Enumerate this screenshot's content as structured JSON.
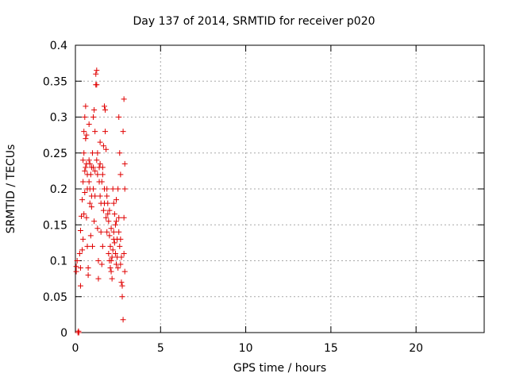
{
  "chart_data": {
    "type": "scatter",
    "title": "Day 137 of 2014, SRMTID for receiver p020",
    "xlabel": "GPS time / hours",
    "ylabel": "SRMTID / TECUs",
    "xlim": [
      0,
      24
    ],
    "ylim": [
      0,
      0.4
    ],
    "xticks": [
      0,
      5,
      10,
      15,
      20
    ],
    "xtick_labels": [
      "0",
      "5",
      "10",
      "15",
      "20"
    ],
    "yticks": [
      0,
      0.05,
      0.1,
      0.15,
      0.2,
      0.25,
      0.3,
      0.35,
      0.4
    ],
    "ytick_labels": [
      "0",
      "0.05",
      "0.1",
      "0.15",
      "0.2",
      "0.25",
      "0.3",
      "0.35",
      "0.4"
    ],
    "grid": true,
    "marker": "+",
    "color": "#e00000",
    "series": [
      {
        "name": "SRMTID",
        "points": [
          [
            0.05,
            0.085
          ],
          [
            0.05,
            0.092
          ],
          [
            0.1,
            0.1
          ],
          [
            0.15,
            0.0
          ],
          [
            0.2,
            0.0
          ],
          [
            0.18,
            0.002
          ],
          [
            0.25,
            0.11
          ],
          [
            0.3,
            0.142
          ],
          [
            0.3,
            0.09
          ],
          [
            0.35,
            0.162
          ],
          [
            0.4,
            0.185
          ],
          [
            0.4,
            0.115
          ],
          [
            0.45,
            0.24
          ],
          [
            0.45,
            0.21
          ],
          [
            0.5,
            0.28
          ],
          [
            0.5,
            0.25
          ],
          [
            0.55,
            0.3
          ],
          [
            0.55,
            0.225
          ],
          [
            0.6,
            0.315
          ],
          [
            0.6,
            0.27
          ],
          [
            0.65,
            0.235
          ],
          [
            0.65,
            0.16
          ],
          [
            0.7,
            0.2
          ],
          [
            0.7,
            0.12
          ],
          [
            0.75,
            0.09
          ],
          [
            0.75,
            0.08
          ],
          [
            0.8,
            0.24
          ],
          [
            0.8,
            0.29
          ],
          [
            0.85,
            0.235
          ],
          [
            0.85,
            0.18
          ],
          [
            0.9,
            0.22
          ],
          [
            0.9,
            0.135
          ],
          [
            0.95,
            0.23
          ],
          [
            0.95,
            0.19
          ],
          [
            1.0,
            0.25
          ],
          [
            1.0,
            0.12
          ],
          [
            1.05,
            0.3
          ],
          [
            1.05,
            0.2
          ],
          [
            1.1,
            0.31
          ],
          [
            1.1,
            0.155
          ],
          [
            1.15,
            0.28
          ],
          [
            1.15,
            0.225
          ],
          [
            1.2,
            0.345
          ],
          [
            1.2,
            0.36
          ],
          [
            1.25,
            0.365
          ],
          [
            1.25,
            0.24
          ],
          [
            1.3,
            0.25
          ],
          [
            1.3,
            0.145
          ],
          [
            1.35,
            0.1
          ],
          [
            1.35,
            0.075
          ],
          [
            1.4,
            0.23
          ],
          [
            1.4,
            0.21
          ],
          [
            1.45,
            0.265
          ],
          [
            1.45,
            0.19
          ],
          [
            1.5,
            0.18
          ],
          [
            1.5,
            0.14
          ],
          [
            1.55,
            0.21
          ],
          [
            1.55,
            0.095
          ],
          [
            1.6,
            0.23
          ],
          [
            1.6,
            0.12
          ],
          [
            1.65,
            0.26
          ],
          [
            1.65,
            0.17
          ],
          [
            1.7,
            0.315
          ],
          [
            1.7,
            0.2
          ],
          [
            1.75,
            0.31
          ],
          [
            1.75,
            0.28
          ],
          [
            1.8,
            0.255
          ],
          [
            1.8,
            0.16
          ],
          [
            1.85,
            0.2
          ],
          [
            1.85,
            0.14
          ],
          [
            1.9,
            0.18
          ],
          [
            1.9,
            0.165
          ],
          [
            1.95,
            0.155
          ],
          [
            1.95,
            0.11
          ],
          [
            2.0,
            0.135
          ],
          [
            2.0,
            0.1
          ],
          [
            2.05,
            0.12
          ],
          [
            2.05,
            0.09
          ],
          [
            2.1,
            0.1
          ],
          [
            2.1,
            0.085
          ],
          [
            2.15,
            0.105
          ],
          [
            2.15,
            0.075
          ],
          [
            2.2,
            0.115
          ],
          [
            2.2,
            0.2
          ],
          [
            2.25,
            0.18
          ],
          [
            2.25,
            0.14
          ],
          [
            2.3,
            0.165
          ],
          [
            2.3,
            0.125
          ],
          [
            2.35,
            0.15
          ],
          [
            2.35,
            0.11
          ],
          [
            2.4,
            0.185
          ],
          [
            2.4,
            0.095
          ],
          [
            2.45,
            0.13
          ],
          [
            2.45,
            0.105
          ],
          [
            2.5,
            0.2
          ],
          [
            2.5,
            0.09
          ],
          [
            2.55,
            0.16
          ],
          [
            2.55,
            0.3
          ],
          [
            2.6,
            0.12
          ],
          [
            2.6,
            0.25
          ],
          [
            2.65,
            0.22
          ],
          [
            2.65,
            0.13
          ],
          [
            2.7,
            0.105
          ],
          [
            2.7,
            0.07
          ],
          [
            2.75,
            0.065
          ],
          [
            2.75,
            0.05
          ],
          [
            2.8,
            0.28
          ],
          [
            2.8,
            0.018
          ],
          [
            2.85,
            0.325
          ],
          [
            2.85,
            0.16
          ],
          [
            2.9,
            0.235
          ],
          [
            2.9,
            0.2
          ],
          [
            2.9,
            0.085
          ],
          [
            2.85,
            0.11
          ],
          [
            0.5,
            0.165
          ],
          [
            0.55,
            0.195
          ],
          [
            0.6,
            0.23
          ],
          [
            0.7,
            0.22
          ],
          [
            0.8,
            0.21
          ],
          [
            0.85,
            0.2
          ],
          [
            0.95,
            0.175
          ],
          [
            1.05,
            0.23
          ],
          [
            1.15,
            0.19
          ],
          [
            1.3,
            0.22
          ],
          [
            1.45,
            0.235
          ],
          [
            1.6,
            0.22
          ],
          [
            1.7,
            0.18
          ],
          [
            1.85,
            0.19
          ],
          [
            2.0,
            0.17
          ],
          [
            2.1,
            0.145
          ],
          [
            2.25,
            0.13
          ],
          [
            2.4,
            0.155
          ],
          [
            2.55,
            0.14
          ],
          [
            2.65,
            0.095
          ],
          [
            0.3,
            0.065
          ],
          [
            0.45,
            0.13
          ],
          [
            0.65,
            0.275
          ],
          [
            1.25,
            0.345
          ]
        ]
      }
    ]
  }
}
